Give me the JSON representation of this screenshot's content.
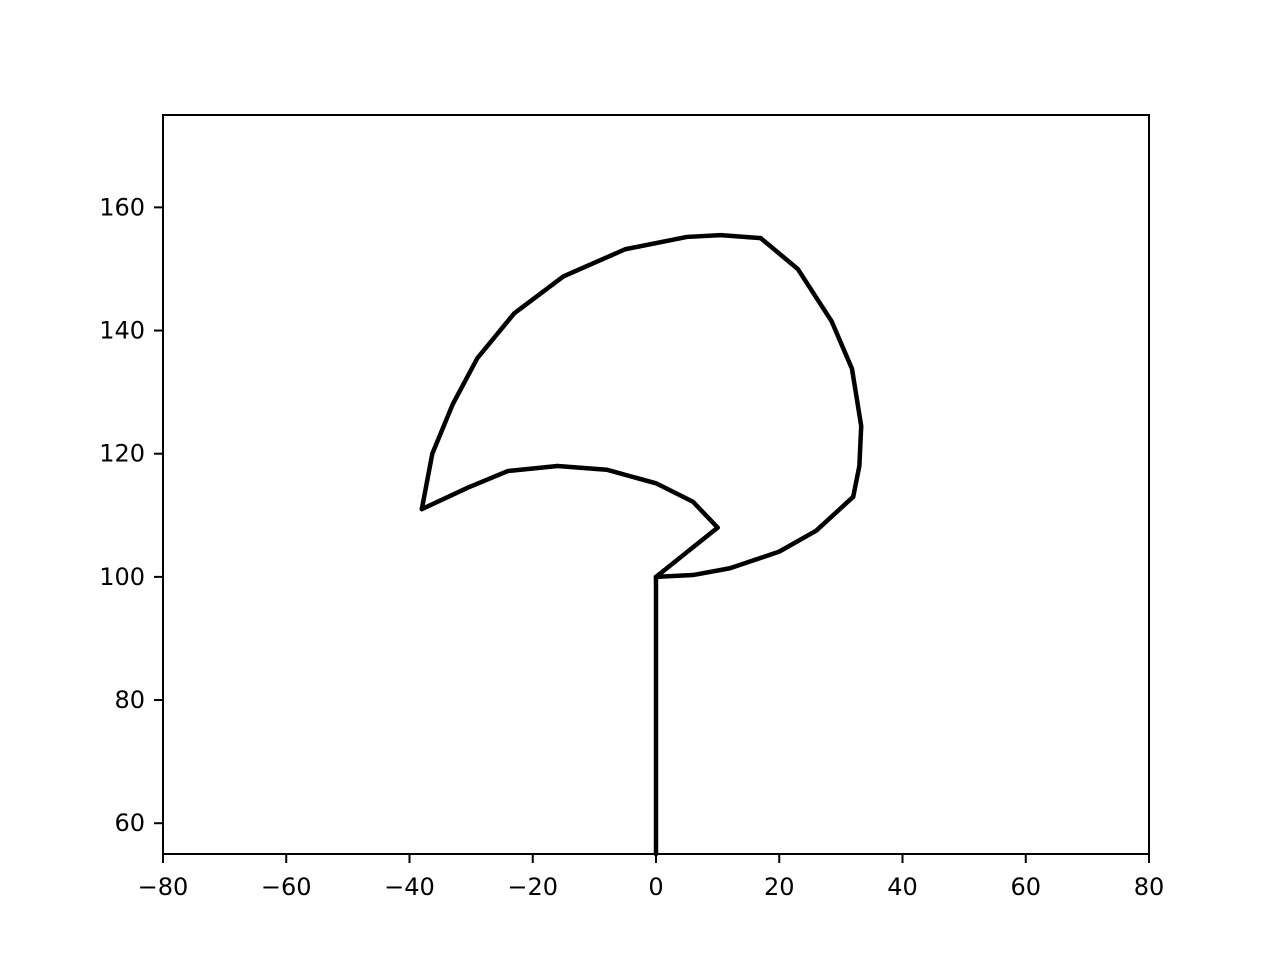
{
  "chart_data": {
    "type": "line",
    "title": "",
    "xlabel": "",
    "ylabel": "",
    "xlim": [
      -80,
      80
    ],
    "ylim": [
      55,
      175
    ],
    "grid": false,
    "line_color": "#000000",
    "x_ticks": [
      {
        "value": -80,
        "label": "−80"
      },
      {
        "value": -60,
        "label": "−60"
      },
      {
        "value": -40,
        "label": "−40"
      },
      {
        "value": -20,
        "label": "−20"
      },
      {
        "value": 0,
        "label": "0"
      },
      {
        "value": 20,
        "label": "20"
      },
      {
        "value": 40,
        "label": "40"
      },
      {
        "value": 60,
        "label": "60"
      },
      {
        "value": 80,
        "label": "80"
      }
    ],
    "y_ticks": [
      {
        "value": 60,
        "label": "60"
      },
      {
        "value": 80,
        "label": "80"
      },
      {
        "value": 100,
        "label": "100"
      },
      {
        "value": 120,
        "label": "120"
      },
      {
        "value": 140,
        "label": "140"
      },
      {
        "value": 160,
        "label": "160"
      }
    ],
    "series": [
      {
        "segments": [
          [
            [
              0,
              55
            ],
            [
              0,
              100
            ]
          ],
          [
            [
              0,
              100
            ],
            [
              10,
              108
            ]
          ],
          [
            [
              10,
              108
            ],
            [
              6,
              112.2
            ],
            [
              0,
              115.2
            ],
            [
              -8,
              117.4
            ],
            [
              -16,
              118
            ],
            [
              -24,
              117.2
            ],
            [
              -30.5,
              114.5
            ],
            [
              -38,
              111
            ]
          ],
          [
            [
              -38,
              111
            ],
            [
              -36.3,
              120
            ],
            [
              -33,
              128
            ],
            [
              -29,
              135.5
            ],
            [
              -23,
              142.8
            ],
            [
              -15,
              148.8
            ],
            [
              -5,
              153.2
            ],
            [
              5,
              155.2
            ],
            [
              10.5,
              155.5
            ],
            [
              17,
              155
            ]
          ],
          [
            [
              17,
              155
            ],
            [
              23,
              150
            ],
            [
              28.5,
              141.5
            ],
            [
              31.8,
              133.8
            ],
            [
              33.3,
              124.5
            ],
            [
              33,
              118
            ],
            [
              32,
              113
            ]
          ],
          [
            [
              32,
              113
            ],
            [
              26,
              107.5
            ],
            [
              20,
              104.1
            ],
            [
              12,
              101.4
            ],
            [
              6,
              100.3
            ],
            [
              0,
              100
            ]
          ]
        ]
      }
    ]
  }
}
